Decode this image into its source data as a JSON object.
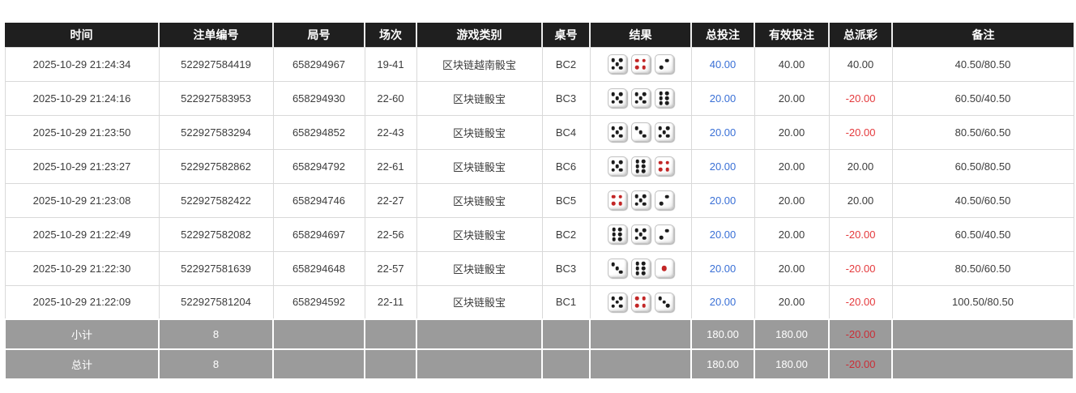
{
  "colors": {
    "header_bg": "#1f1f1f",
    "header_text": "#ffffff",
    "grid_border": "#d9d9d9",
    "summary_bg": "#9b9b9b",
    "total_bet_link_blue": "#3a70d6",
    "negative_red": "#e4393c",
    "summary_negative_red": "#cb2d36",
    "die_pip_black": "#1c1c1c",
    "die_pip_red": "#c22525"
  },
  "icons": {
    "die": "die-face-icon"
  },
  "table": {
    "columns": [
      {
        "key": "time",
        "label": "时间"
      },
      {
        "key": "bet_id",
        "label": "注单编号"
      },
      {
        "key": "round_id",
        "label": "局号"
      },
      {
        "key": "session",
        "label": "场次"
      },
      {
        "key": "game_type",
        "label": "游戏类别"
      },
      {
        "key": "table_no",
        "label": "桌号"
      },
      {
        "key": "result",
        "label": "结果"
      },
      {
        "key": "total_bet",
        "label": "总投注"
      },
      {
        "key": "valid_bet",
        "label": "有效投注"
      },
      {
        "key": "total_payout",
        "label": "总派彩"
      },
      {
        "key": "remark",
        "label": "备注"
      }
    ],
    "rows": [
      {
        "time": "2025-10-29 21:24:34",
        "bet_id": "522927584419",
        "round_id": "658294967",
        "session": "19-41",
        "game_type": "区块链越南骰宝",
        "table_no": "BC2",
        "dice": [
          5,
          4,
          2
        ],
        "total_bet": "40.00",
        "valid_bet": "40.00",
        "total_payout": "40.00",
        "remark": "40.50/80.50"
      },
      {
        "time": "2025-10-29 21:24:16",
        "bet_id": "522927583953",
        "round_id": "658294930",
        "session": "22-60",
        "game_type": "区块链骰宝",
        "table_no": "BC3",
        "dice": [
          5,
          5,
          6
        ],
        "total_bet": "20.00",
        "valid_bet": "20.00",
        "total_payout": "-20.00",
        "remark": "60.50/40.50"
      },
      {
        "time": "2025-10-29 21:23:50",
        "bet_id": "522927583294",
        "round_id": "658294852",
        "session": "22-43",
        "game_type": "区块链骰宝",
        "table_no": "BC4",
        "dice": [
          5,
          3,
          5
        ],
        "total_bet": "20.00",
        "valid_bet": "20.00",
        "total_payout": "-20.00",
        "remark": "80.50/60.50"
      },
      {
        "time": "2025-10-29 21:23:27",
        "bet_id": "522927582862",
        "round_id": "658294792",
        "session": "22-61",
        "game_type": "区块链骰宝",
        "table_no": "BC6",
        "dice": [
          5,
          6,
          4
        ],
        "total_bet": "20.00",
        "valid_bet": "20.00",
        "total_payout": "20.00",
        "remark": "60.50/80.50"
      },
      {
        "time": "2025-10-29 21:23:08",
        "bet_id": "522927582422",
        "round_id": "658294746",
        "session": "22-27",
        "game_type": "区块链骰宝",
        "table_no": "BC5",
        "dice": [
          4,
          5,
          2
        ],
        "total_bet": "20.00",
        "valid_bet": "20.00",
        "total_payout": "20.00",
        "remark": "40.50/60.50"
      },
      {
        "time": "2025-10-29 21:22:49",
        "bet_id": "522927582082",
        "round_id": "658294697",
        "session": "22-56",
        "game_type": "区块链骰宝",
        "table_no": "BC2",
        "dice": [
          6,
          5,
          2
        ],
        "total_bet": "20.00",
        "valid_bet": "20.00",
        "total_payout": "-20.00",
        "remark": "60.50/40.50"
      },
      {
        "time": "2025-10-29 21:22:30",
        "bet_id": "522927581639",
        "round_id": "658294648",
        "session": "22-57",
        "game_type": "区块链骰宝",
        "table_no": "BC3",
        "dice": [
          3,
          6,
          1
        ],
        "total_bet": "20.00",
        "valid_bet": "20.00",
        "total_payout": "-20.00",
        "remark": "80.50/60.50"
      },
      {
        "time": "2025-10-29 21:22:09",
        "bet_id": "522927581204",
        "round_id": "658294592",
        "session": "22-11",
        "game_type": "区块链骰宝",
        "table_no": "BC1",
        "dice": [
          5,
          4,
          3
        ],
        "total_bet": "20.00",
        "valid_bet": "20.00",
        "total_payout": "-20.00",
        "remark": "100.50/80.50"
      }
    ],
    "summary_rows": [
      {
        "label": "小计",
        "count": "8",
        "total_bet": "180.00",
        "valid_bet": "180.00",
        "total_payout": "-20.00",
        "remark": ""
      },
      {
        "label": "总计",
        "count": "8",
        "total_bet": "180.00",
        "valid_bet": "180.00",
        "total_payout": "-20.00",
        "remark": ""
      }
    ]
  }
}
